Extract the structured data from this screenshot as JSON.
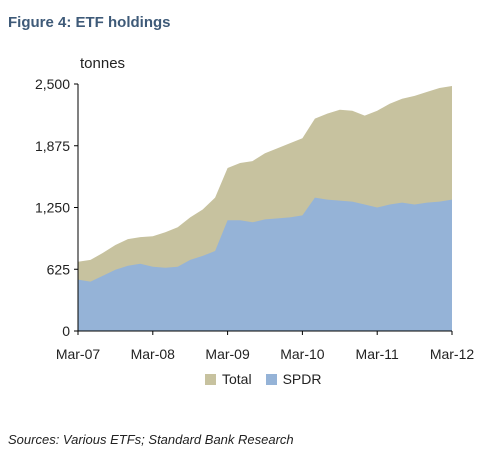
{
  "figure_title": "Figure 4: ETF holdings",
  "source_note": "Sources: Various ETFs; Standard Bank Research",
  "colors": {
    "total": "#c7c29f",
    "spdr": "#95b3d7",
    "axis": "#000000"
  },
  "chart_data": {
    "type": "area",
    "title": "",
    "ylabel": "tonnes",
    "ylim": [
      0,
      2500
    ],
    "yticks": [
      0,
      625,
      1250,
      1875,
      2500
    ],
    "ytick_labels": [
      "0",
      "625",
      "1,250",
      "1,875",
      "2,500"
    ],
    "xlim": [
      "2007-03",
      "2012-03"
    ],
    "xticks": [
      "2007-03",
      "2008-03",
      "2009-03",
      "2010-03",
      "2011-03",
      "2012-03"
    ],
    "xtick_labels": [
      "Mar-07",
      "Mar-08",
      "Mar-09",
      "Mar-10",
      "Mar-11",
      "Mar-12"
    ],
    "grid": false,
    "legend_position": "bottom",
    "series": [
      {
        "name": "Total",
        "x": [
          "2007-03",
          "2007-05",
          "2007-07",
          "2007-09",
          "2007-11",
          "2008-01",
          "2008-03",
          "2008-05",
          "2008-07",
          "2008-09",
          "2008-11",
          "2009-01",
          "2009-03",
          "2009-05",
          "2009-07",
          "2009-09",
          "2009-11",
          "2010-01",
          "2010-03",
          "2010-05",
          "2010-07",
          "2010-09",
          "2010-11",
          "2011-01",
          "2011-03",
          "2011-05",
          "2011-07",
          "2011-09",
          "2011-11",
          "2012-01",
          "2012-03"
        ],
        "values": [
          700,
          720,
          790,
          870,
          930,
          950,
          960,
          1000,
          1050,
          1150,
          1230,
          1350,
          1650,
          1700,
          1720,
          1800,
          1850,
          1900,
          1950,
          2150,
          2200,
          2240,
          2230,
          2180,
          2230,
          2300,
          2350,
          2380,
          2420,
          2460,
          2480
        ]
      },
      {
        "name": "SPDR",
        "x": [
          "2007-03",
          "2007-05",
          "2007-07",
          "2007-09",
          "2007-11",
          "2008-01",
          "2008-03",
          "2008-05",
          "2008-07",
          "2008-09",
          "2008-11",
          "2009-01",
          "2009-03",
          "2009-05",
          "2009-07",
          "2009-09",
          "2009-11",
          "2010-01",
          "2010-03",
          "2010-05",
          "2010-07",
          "2010-09",
          "2010-11",
          "2011-01",
          "2011-03",
          "2011-05",
          "2011-07",
          "2011-09",
          "2011-11",
          "2012-01",
          "2012-03"
        ],
        "values": [
          520,
          500,
          560,
          620,
          660,
          680,
          650,
          640,
          650,
          720,
          760,
          810,
          1120,
          1120,
          1100,
          1130,
          1140,
          1150,
          1170,
          1350,
          1330,
          1320,
          1310,
          1280,
          1250,
          1280,
          1300,
          1280,
          1300,
          1310,
          1330
        ]
      }
    ]
  }
}
